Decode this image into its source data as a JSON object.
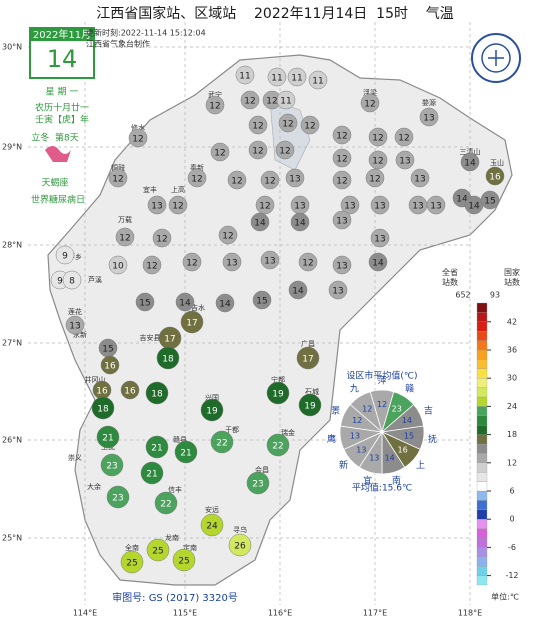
{
  "title": "江西省国家站、区域站    2022年11月14日  15时    气温",
  "update_time": "更新时刻:2022-11-14 15:12:04",
  "producer": "江西省气象台制作",
  "calendar": {
    "month": "2022年11月",
    "day": "14",
    "weekday": "星 期 一",
    "lunar": "农历十月廿一",
    "year": "壬寅【虎】年",
    "solar_term": "立冬  第8天",
    "sign": "天蝎座",
    "event": "世界糖尿病日"
  },
  "latitudes": [
    "30°N",
    "29°N",
    "28°N",
    "27°N",
    "26°N",
    "25°N"
  ],
  "longitudes": [
    "114°E",
    "115°E",
    "116°E",
    "117°E",
    "118°E"
  ],
  "places": [
    "修水",
    "武宁",
    "浮梁",
    "婺源",
    "铜鼓",
    "奉新",
    "三清山",
    "玉山",
    "万载",
    "宜丰",
    "上高",
    "萍乡",
    "芦溪",
    "莲花",
    "永新",
    "吉安县",
    "吉水",
    "广昌",
    "井冈山",
    "兴国",
    "宁都",
    "石城",
    "赣县",
    "于都",
    "瑞金",
    "上犹",
    "崇义",
    "大余",
    "信丰",
    "会昌",
    "安远",
    "寻乌",
    "龙南",
    "全南",
    "定南"
  ],
  "stations": [
    11,
    11,
    11,
    11,
    12,
    12,
    11,
    12,
    12,
    12,
    12,
    13,
    12,
    12,
    12,
    12,
    12,
    12,
    12,
    12,
    12,
    12,
    13,
    14,
    16,
    12,
    12,
    12,
    12,
    13,
    12,
    12,
    13,
    13,
    12,
    12,
    13,
    13,
    13,
    13,
    13,
    14,
    14,
    15,
    12,
    12,
    12,
    14,
    14,
    13,
    13,
    9,
    10,
    12,
    12,
    13,
    13,
    12,
    13,
    14,
    9,
    8,
    15,
    14,
    14,
    15,
    14,
    13,
    13,
    17,
    15,
    17,
    18,
    17,
    16,
    16,
    16,
    18,
    18,
    19,
    19,
    19,
    21,
    21,
    21,
    22,
    22,
    23,
    21,
    23,
    23,
    22,
    24,
    26,
    25,
    25,
    25
  ],
  "legend": {
    "total_label": "全省\n站数",
    "total": "652",
    "national_label": "国家\n站数",
    "national": "93",
    "unit": "单位:℃",
    "lim": [
      -14,
      46
    ],
    "ticks": [
      42,
      36,
      30,
      24,
      18,
      12,
      6,
      0,
      -6,
      -12
    ],
    "colors": [
      "#8ee6f0",
      "#6fd0ea",
      "#8fb0ee",
      "#a890e6",
      "#c070dc",
      "#d860d8",
      "#e890f0",
      "#2040a8",
      "#3f6fd0",
      "#8fb8ec",
      "#ffffff",
      "#e6e6e6",
      "#cfcfcf",
      "#a9a9a9",
      "#8c8c8c",
      "#707040",
      "#1e6b2a",
      "#2e8a3e",
      "#4ba35e",
      "#b5d62c",
      "#d2e85e",
      "#eef07a",
      "#f8e040",
      "#f8c030",
      "#f8a020",
      "#f47818",
      "#e84a14",
      "#d82010",
      "#b81818",
      "#801010"
    ]
  },
  "city_average": {
    "title": "设区市平均值(℃)",
    "cities": [
      "萍",
      "赣",
      "吉",
      "抚",
      "上",
      "南",
      "宜",
      "新",
      "鹰",
      "景",
      "九"
    ],
    "values": [
      12,
      23,
      14,
      15,
      16,
      14,
      13,
      13,
      13,
      12,
      12
    ],
    "average": "平均值:15.6℃"
  },
  "review_number": "审图号: GS (2017) 3320号"
}
